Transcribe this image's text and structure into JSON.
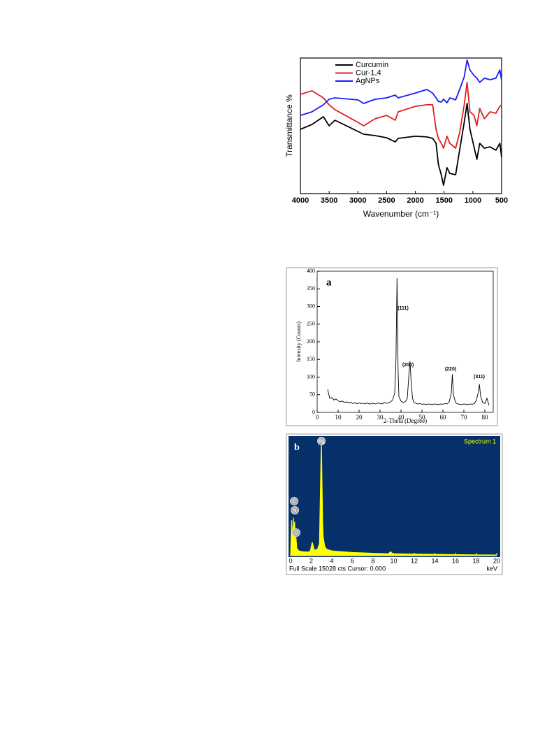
{
  "chart_data": [
    {
      "type": "line",
      "legend": "upper left",
      "xlabel": "Wavenumber (cm⁻¹)",
      "ylabel": "Transmittance %",
      "xlim": [
        4000,
        500
      ],
      "ylim": [
        0,
        100
      ],
      "xticks": [
        4000,
        3500,
        3000,
        2500,
        2000,
        1500,
        1000,
        500
      ],
      "x": [
        4000,
        3800,
        3600,
        3500,
        3400,
        3000,
        2900,
        2700,
        2500,
        2350,
        2300,
        2000,
        1800,
        1700,
        1640,
        1600,
        1550,
        1510,
        1450,
        1400,
        1300,
        1230,
        1150,
        1100,
        1050,
        980,
        930,
        880,
        800,
        700,
        600,
        530,
        500
      ],
      "series": [
        {
          "name": "Curcumin",
          "color": "#000000",
          "values": [
            47.4,
            51,
            56.7,
            50,
            54.1,
            45.9,
            43.8,
            42.8,
            41.2,
            38.1,
            40.7,
            42.3,
            41.8,
            40.7,
            37.1,
            21.6,
            13.9,
            6.2,
            19.1,
            14.9,
            13.9,
            32,
            52.6,
            66.5,
            47.4,
            34.5,
            25.3,
            37.1,
            33.5,
            34.5,
            32,
            37.1,
            26.8
          ]
        },
        {
          "name": "Cur-1,4",
          "color": "#e02020",
          "values": [
            73.2,
            75.8,
            70.6,
            65.5,
            61.9,
            52.6,
            50,
            55.2,
            57.7,
            54.1,
            60.3,
            64.4,
            65.5,
            65.5,
            47.4,
            40.7,
            37.1,
            33.5,
            42.3,
            37.1,
            33.5,
            44.8,
            65.5,
            82,
            60.3,
            57.7,
            50,
            62.9,
            55.2,
            60.3,
            59.3,
            64.4,
            65.5
          ]
        },
        {
          "name": "AgNPs",
          "color": "#1a1aff",
          "values": [
            57.7,
            60.3,
            65.5,
            69.6,
            70.6,
            69.1,
            66.5,
            69.6,
            70.6,
            72.7,
            70.6,
            74.2,
            76.8,
            74.2,
            70.6,
            68,
            67.5,
            69.6,
            67,
            70.6,
            69.1,
            76.8,
            86.1,
            98.5,
            91.2,
            87.1,
            85.1,
            82,
            85.1,
            84,
            85.1,
            91.2,
            83.5
          ]
        }
      ]
    },
    {
      "type": "line",
      "panel": "a",
      "xlabel": "2-Theta (Degree)",
      "ylabel": "Intensity (Counts)",
      "color": "#000000",
      "annotations": [
        "(111)",
        "(200)",
        "(220)",
        "(311)"
      ],
      "xlim": [
        0,
        84
      ],
      "ylim": [
        0,
        400
      ],
      "xticks": [
        0,
        10,
        20,
        30,
        40,
        50,
        60,
        70,
        80
      ],
      "yticks": [
        0,
        50,
        100,
        150,
        200,
        250,
        300,
        350,
        400
      ],
      "x": [
        5,
        6,
        7,
        8,
        9,
        10,
        11,
        12,
        13,
        14,
        15,
        16,
        17,
        18,
        19,
        20,
        21,
        22,
        23,
        24,
        25,
        26,
        27,
        28,
        29,
        30,
        31,
        32,
        33,
        34,
        35,
        36,
        37,
        37.6,
        38.1,
        38.6,
        39,
        40,
        41,
        42,
        43,
        43.8,
        44.3,
        44.8,
        45.5,
        46,
        47,
        48,
        49,
        50,
        51,
        52,
        53,
        54,
        55,
        56,
        57,
        58,
        59,
        60,
        61,
        62,
        63,
        64,
        64.5,
        65,
        66,
        67,
        68,
        69,
        70,
        71,
        72,
        73,
        74,
        75,
        76,
        77,
        77.4,
        78,
        79,
        80,
        81,
        82
      ],
      "values": [
        65,
        40,
        42,
        35,
        38,
        33,
        30,
        32,
        28,
        30,
        27,
        29,
        25,
        28,
        24,
        27,
        25,
        26,
        24,
        27,
        23,
        26,
        25,
        24,
        27,
        25,
        24,
        28,
        26,
        27,
        30,
        35,
        55,
        150,
        380,
        120,
        45,
        32,
        28,
        30,
        40,
        110,
        145,
        90,
        40,
        30,
        26,
        24,
        25,
        23,
        24,
        22,
        24,
        23,
        22,
        24,
        23,
        22,
        24,
        23,
        25,
        24,
        30,
        55,
        108,
        50,
        28,
        24,
        23,
        22,
        24,
        23,
        22,
        24,
        23,
        25,
        35,
        60,
        80,
        45,
        28,
        25,
        40,
        20
      ]
    },
    {
      "type": "line",
      "panel": "b",
      "title": "Spectrum 1",
      "xunit": "keV",
      "footer": "Full Scale 15028 cts Cursor: 0.000",
      "background": "#06306a",
      "color": "#ffff00",
      "annotations": [
        "Ag",
        "C",
        "N",
        "O"
      ],
      "xlim": [
        0,
        20
      ],
      "ylim": [
        0,
        15028
      ],
      "xticks": [
        0,
        2,
        4,
        6,
        8,
        10,
        12,
        14,
        16,
        18,
        20
      ],
      "x": [
        0,
        0.1,
        0.18,
        0.27,
        0.33,
        0.39,
        0.45,
        0.52,
        0.6,
        0.8,
        1.2,
        1.6,
        1.9,
        2.1,
        2.3,
        2.6,
        2.8,
        2.98,
        3.1,
        3.15,
        3.3,
        3.5,
        4,
        5,
        6,
        8,
        9.5,
        9.7,
        9.9,
        12,
        15,
        18,
        20
      ],
      "values": [
        0,
        4500,
        1500,
        4800,
        1800,
        4300,
        1500,
        2300,
        900,
        600,
        500,
        450,
        550,
        1700,
        700,
        800,
        1500,
        14700,
        4500,
        2500,
        1200,
        800,
        600,
        500,
        400,
        300,
        250,
        500,
        250,
        200,
        150,
        100,
        80
      ]
    }
  ]
}
